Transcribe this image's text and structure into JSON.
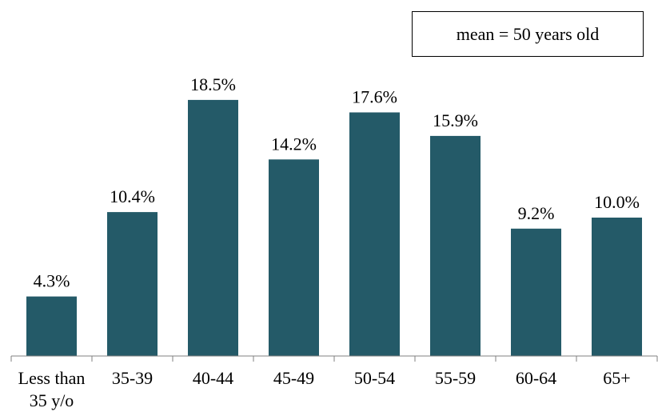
{
  "chart_data": {
    "type": "bar",
    "categories": [
      "Less than\n35 y/o",
      "35-39",
      "40-44",
      "45-49",
      "50-54",
      "55-59",
      "60-64",
      "65+"
    ],
    "values": [
      4.3,
      10.4,
      18.5,
      14.2,
      17.6,
      15.9,
      9.2,
      10.0
    ],
    "data_labels": [
      "4.3%",
      "10.4%",
      "18.5%",
      "14.2%",
      "17.6%",
      "15.9%",
      "9.2%",
      "10.0%"
    ],
    "annotation": "mean = 50 years old",
    "ylim": [
      0,
      20
    ],
    "grid": false,
    "bar_color": "#245A68"
  }
}
